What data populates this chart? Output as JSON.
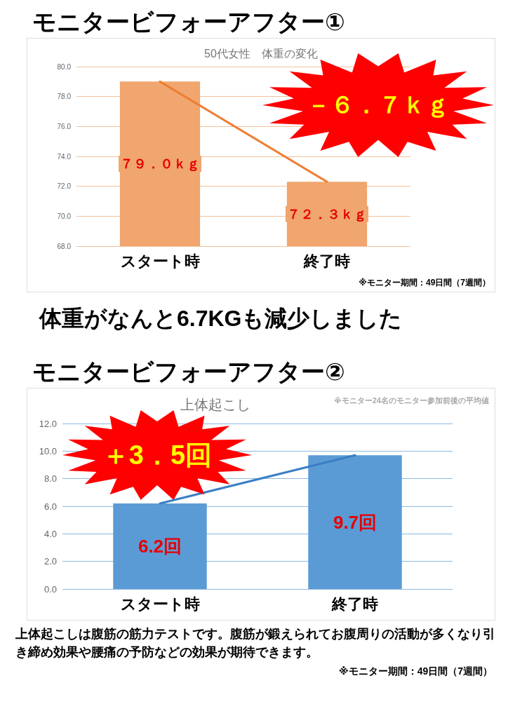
{
  "chart_data": [
    {
      "type": "bar",
      "title": "モニタービフォーアフター①",
      "subtitle": "50代女性　体重の変化",
      "categories": [
        "スタート時",
        "終了時"
      ],
      "series": [
        {
          "color": "#f0a66e",
          "values": [
            79.0,
            72.3
          ],
          "value_labels": [
            "７９．０ｋｇ",
            "７２．３ｋｇ"
          ]
        },
        {
          "type": "line",
          "color": "#ed7d31",
          "values": [
            79.0,
            72.3
          ]
        }
      ],
      "ylim": [
        68,
        80
      ],
      "yticks": [
        {
          "value": 68,
          "label": "68.0"
        },
        {
          "value": 70,
          "label": "70.0"
        },
        {
          "value": 72,
          "label": "72.0"
        },
        {
          "value": 74,
          "label": "74.0"
        },
        {
          "value": 76,
          "label": "76.0"
        },
        {
          "value": 78,
          "label": "78.0"
        },
        {
          "value": 80,
          "label": "80.0"
        }
      ],
      "grid": "y",
      "marker": "none",
      "line_style": "solid",
      "annotations": [
        "－６．７ｋｇ",
        "※モニター期間：49日間（7週間）",
        "体重がなんと6.7KGも減少しました"
      ]
    },
    {
      "type": "bar",
      "title": "モニタービフォーアフター②",
      "subtitle": "上体起こし",
      "categories": [
        "スタート時",
        "終了時"
      ],
      "series": [
        {
          "color": "#5b9bd5",
          "values": [
            6.2,
            9.7
          ],
          "value_labels": [
            "6.2回",
            "9.7回"
          ]
        },
        {
          "type": "line",
          "color": "#3a7fc4",
          "values": [
            6.2,
            9.7
          ]
        }
      ],
      "ylim": [
        0,
        12
      ],
      "yticks": [
        {
          "value": 0,
          "label": "0.0"
        },
        {
          "value": 2,
          "label": "2.0"
        },
        {
          "value": 4,
          "label": "4.0"
        },
        {
          "value": 6,
          "label": "6.0"
        },
        {
          "value": 8,
          "label": "8.0"
        },
        {
          "value": 10,
          "label": "10.0"
        },
        {
          "value": 12,
          "label": "12.0"
        }
      ],
      "grid": "y",
      "marker": "none",
      "line_style": "solid",
      "annotations": [
        "※モニター24名のモニター参加前後の平均値",
        "＋3．5回",
        "上体起こしは腹筋の筋力テストです。腹筋が鍛えられてお腹周りの活動が多くなり引き締め効果や腰痛の予防などの効果が期待できます。",
        "※モニター期間：49日間（7週間）"
      ]
    }
  ]
}
